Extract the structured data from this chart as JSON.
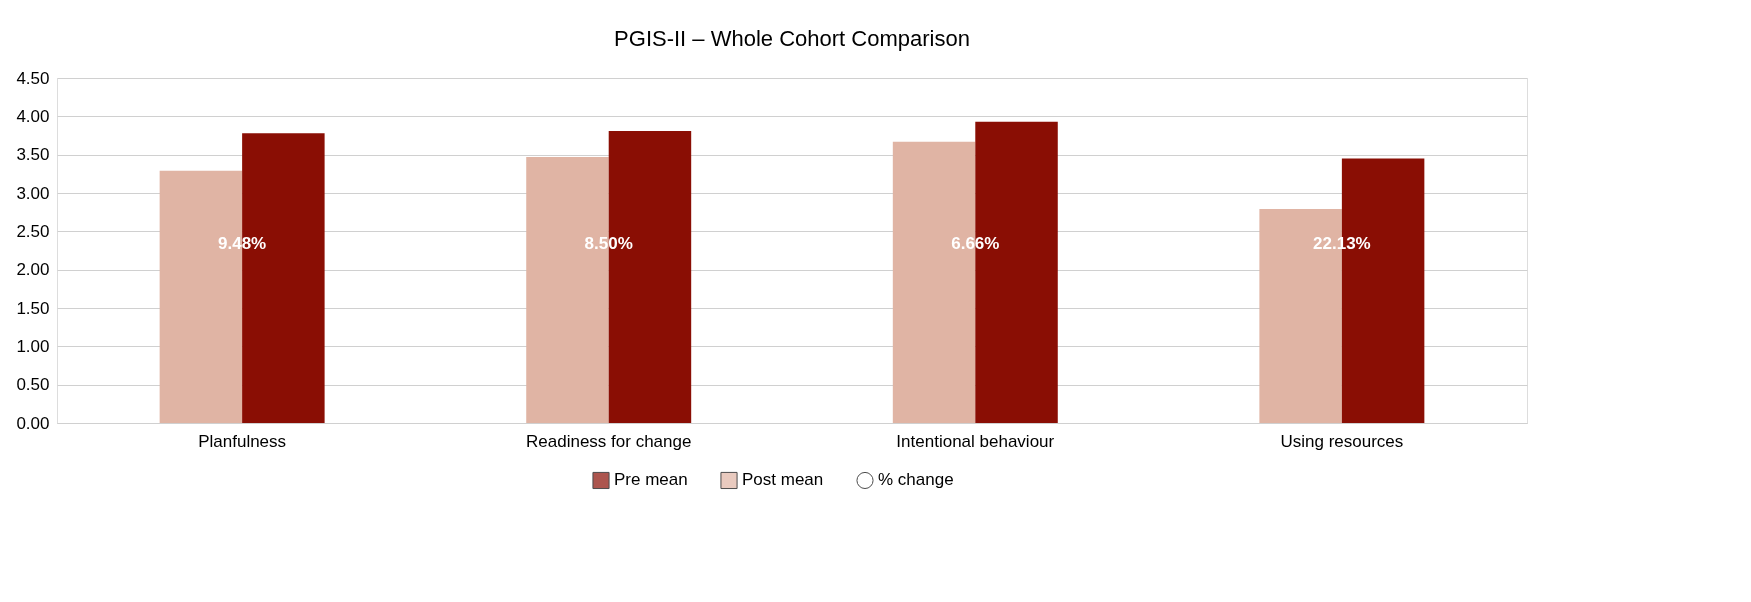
{
  "chart_data": {
    "type": "bar",
    "title": "PGIS-II – Whole Cohort Comparison",
    "categories": [
      "Planfulness",
      "Readiness for change",
      "Intentional behaviour",
      "Using resources"
    ],
    "series": [
      {
        "name": "Post mean",
        "color": "#e0b4a4",
        "values": [
          3.29,
          3.47,
          3.67,
          2.79
        ]
      },
      {
        "name": "Pre mean",
        "color": "#8a0e04",
        "values": [
          3.78,
          3.81,
          3.93,
          3.45
        ]
      },
      {
        "name": "% change",
        "type": "scatter",
        "marker": "circle",
        "color": "#ffffff",
        "values": [
          null,
          null,
          null,
          null
        ]
      }
    ],
    "annotations": [
      {
        "text": "9.48%",
        "x": "Planfulness",
        "y": 2.34
      },
      {
        "text": "8.50%",
        "x": "Readiness for change",
        "y": 2.34
      },
      {
        "text": "6.66%",
        "x": "Intentional behaviour",
        "y": 2.34
      },
      {
        "text": "22.13%",
        "x": "Using resources",
        "y": 2.34
      }
    ],
    "ylim": [
      0,
      4.5
    ],
    "yticks": [
      {
        "value": 0,
        "label": "0.00"
      },
      {
        "value": 0.5,
        "label": "0.50"
      },
      {
        "value": 1,
        "label": "1.00"
      },
      {
        "value": 1.5,
        "label": "1.50"
      },
      {
        "value": 2,
        "label": "2.00"
      },
      {
        "value": 2.5,
        "label": "2.50"
      },
      {
        "value": 3,
        "label": "3.00"
      },
      {
        "value": 3.5,
        "label": "3.50"
      },
      {
        "value": 4,
        "label": "4.00"
      },
      {
        "value": 4.5,
        "label": "4.50"
      }
    ],
    "grid": "y",
    "legend": "bottom"
  }
}
